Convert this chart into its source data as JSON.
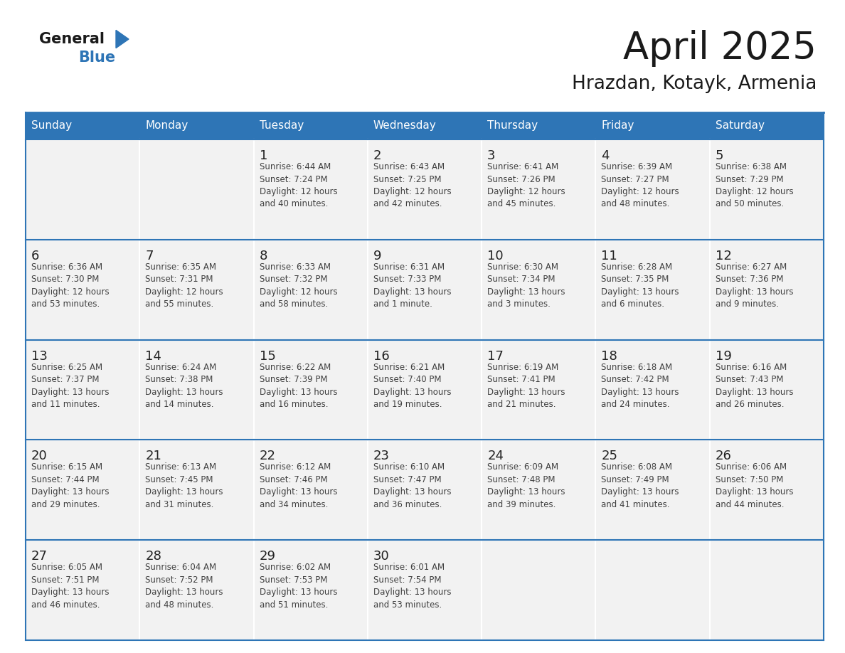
{
  "title": "April 2025",
  "subtitle": "Hrazdan, Kotayk, Armenia",
  "days_of_week": [
    "Sunday",
    "Monday",
    "Tuesday",
    "Wednesday",
    "Thursday",
    "Friday",
    "Saturday"
  ],
  "header_bg": "#2E75B6",
  "header_text": "#FFFFFF",
  "cell_bg": "#F2F2F2",
  "cell_border_color": "#2E75B6",
  "text_color": "#404040",
  "day_number_color": "#222222",
  "logo_general_color": "#1a1a1a",
  "logo_blue_color": "#2E75B6",
  "calendar_data": [
    [
      {
        "day": null,
        "info": ""
      },
      {
        "day": null,
        "info": ""
      },
      {
        "day": 1,
        "info": "Sunrise: 6:44 AM\nSunset: 7:24 PM\nDaylight: 12 hours\nand 40 minutes."
      },
      {
        "day": 2,
        "info": "Sunrise: 6:43 AM\nSunset: 7:25 PM\nDaylight: 12 hours\nand 42 minutes."
      },
      {
        "day": 3,
        "info": "Sunrise: 6:41 AM\nSunset: 7:26 PM\nDaylight: 12 hours\nand 45 minutes."
      },
      {
        "day": 4,
        "info": "Sunrise: 6:39 AM\nSunset: 7:27 PM\nDaylight: 12 hours\nand 48 minutes."
      },
      {
        "day": 5,
        "info": "Sunrise: 6:38 AM\nSunset: 7:29 PM\nDaylight: 12 hours\nand 50 minutes."
      }
    ],
    [
      {
        "day": 6,
        "info": "Sunrise: 6:36 AM\nSunset: 7:30 PM\nDaylight: 12 hours\nand 53 minutes."
      },
      {
        "day": 7,
        "info": "Sunrise: 6:35 AM\nSunset: 7:31 PM\nDaylight: 12 hours\nand 55 minutes."
      },
      {
        "day": 8,
        "info": "Sunrise: 6:33 AM\nSunset: 7:32 PM\nDaylight: 12 hours\nand 58 minutes."
      },
      {
        "day": 9,
        "info": "Sunrise: 6:31 AM\nSunset: 7:33 PM\nDaylight: 13 hours\nand 1 minute."
      },
      {
        "day": 10,
        "info": "Sunrise: 6:30 AM\nSunset: 7:34 PM\nDaylight: 13 hours\nand 3 minutes."
      },
      {
        "day": 11,
        "info": "Sunrise: 6:28 AM\nSunset: 7:35 PM\nDaylight: 13 hours\nand 6 minutes."
      },
      {
        "day": 12,
        "info": "Sunrise: 6:27 AM\nSunset: 7:36 PM\nDaylight: 13 hours\nand 9 minutes."
      }
    ],
    [
      {
        "day": 13,
        "info": "Sunrise: 6:25 AM\nSunset: 7:37 PM\nDaylight: 13 hours\nand 11 minutes."
      },
      {
        "day": 14,
        "info": "Sunrise: 6:24 AM\nSunset: 7:38 PM\nDaylight: 13 hours\nand 14 minutes."
      },
      {
        "day": 15,
        "info": "Sunrise: 6:22 AM\nSunset: 7:39 PM\nDaylight: 13 hours\nand 16 minutes."
      },
      {
        "day": 16,
        "info": "Sunrise: 6:21 AM\nSunset: 7:40 PM\nDaylight: 13 hours\nand 19 minutes."
      },
      {
        "day": 17,
        "info": "Sunrise: 6:19 AM\nSunset: 7:41 PM\nDaylight: 13 hours\nand 21 minutes."
      },
      {
        "day": 18,
        "info": "Sunrise: 6:18 AM\nSunset: 7:42 PM\nDaylight: 13 hours\nand 24 minutes."
      },
      {
        "day": 19,
        "info": "Sunrise: 6:16 AM\nSunset: 7:43 PM\nDaylight: 13 hours\nand 26 minutes."
      }
    ],
    [
      {
        "day": 20,
        "info": "Sunrise: 6:15 AM\nSunset: 7:44 PM\nDaylight: 13 hours\nand 29 minutes."
      },
      {
        "day": 21,
        "info": "Sunrise: 6:13 AM\nSunset: 7:45 PM\nDaylight: 13 hours\nand 31 minutes."
      },
      {
        "day": 22,
        "info": "Sunrise: 6:12 AM\nSunset: 7:46 PM\nDaylight: 13 hours\nand 34 minutes."
      },
      {
        "day": 23,
        "info": "Sunrise: 6:10 AM\nSunset: 7:47 PM\nDaylight: 13 hours\nand 36 minutes."
      },
      {
        "day": 24,
        "info": "Sunrise: 6:09 AM\nSunset: 7:48 PM\nDaylight: 13 hours\nand 39 minutes."
      },
      {
        "day": 25,
        "info": "Sunrise: 6:08 AM\nSunset: 7:49 PM\nDaylight: 13 hours\nand 41 minutes."
      },
      {
        "day": 26,
        "info": "Sunrise: 6:06 AM\nSunset: 7:50 PM\nDaylight: 13 hours\nand 44 minutes."
      }
    ],
    [
      {
        "day": 27,
        "info": "Sunrise: 6:05 AM\nSunset: 7:51 PM\nDaylight: 13 hours\nand 46 minutes."
      },
      {
        "day": 28,
        "info": "Sunrise: 6:04 AM\nSunset: 7:52 PM\nDaylight: 13 hours\nand 48 minutes."
      },
      {
        "day": 29,
        "info": "Sunrise: 6:02 AM\nSunset: 7:53 PM\nDaylight: 13 hours\nand 51 minutes."
      },
      {
        "day": 30,
        "info": "Sunrise: 6:01 AM\nSunset: 7:54 PM\nDaylight: 13 hours\nand 53 minutes."
      },
      {
        "day": null,
        "info": ""
      },
      {
        "day": null,
        "info": ""
      },
      {
        "day": null,
        "info": ""
      }
    ]
  ]
}
